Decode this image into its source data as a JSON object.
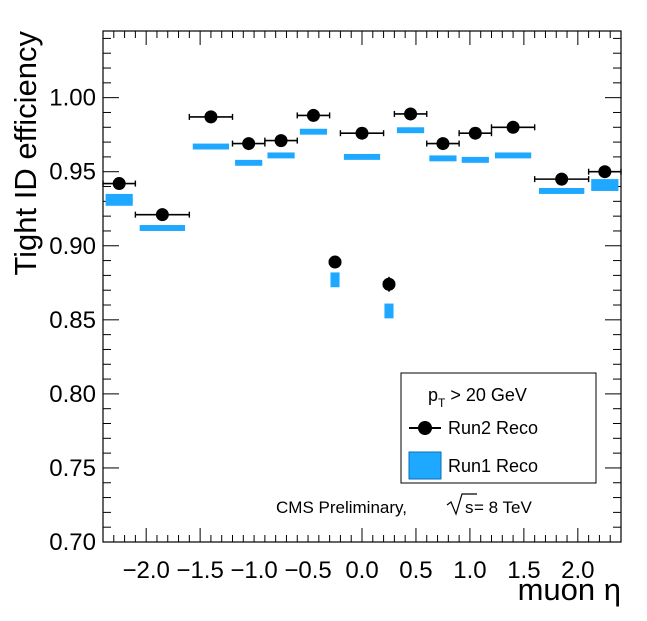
{
  "chart_data": {
    "type": "scatter",
    "title": "",
    "xlabel": "muon η",
    "ylabel": "Tight ID efficiency",
    "xlim": [
      -2.4,
      2.4
    ],
    "ylim": [
      0.7,
      1.045
    ],
    "x_ticks": [
      -2.0,
      -1.5,
      -1.0,
      -0.5,
      0.0,
      0.5,
      1.0,
      1.5,
      2.0
    ],
    "x_tick_labels": [
      "−2.0",
      "−1.5",
      "−1.0",
      "−0.5",
      "0.0",
      "0.5",
      "1.0",
      "1.5",
      "2.0"
    ],
    "y_ticks": [
      0.7,
      0.75,
      0.8,
      0.85,
      0.9,
      0.95,
      1.0
    ],
    "y_tick_labels": [
      "0.70",
      "0.75",
      "0.80",
      "0.85",
      "0.90",
      "0.95",
      "1.00"
    ],
    "bins": [
      -2.4,
      -2.1,
      -1.6,
      -1.2,
      -0.9,
      -0.6,
      -0.3,
      -0.2,
      0.2,
      0.3,
      0.6,
      0.9,
      1.2,
      1.6,
      2.1,
      2.4
    ],
    "series": [
      {
        "name": "Run2 Reco",
        "style": "markers-with-x-error",
        "values": [
          0.942,
          0.921,
          0.987,
          0.969,
          0.971,
          0.988,
          0.889,
          0.976,
          0.874,
          0.989,
          0.969,
          0.976,
          0.98,
          0.945,
          0.95
        ],
        "y_err": [
          0.002,
          0.002,
          0.002,
          0.002,
          0.002,
          0.002,
          0.003,
          0.002,
          0.005,
          0.002,
          0.002,
          0.002,
          0.002,
          0.002,
          0.002
        ]
      },
      {
        "name": "Run1 Reco",
        "style": "band",
        "color": "#1ea8ff",
        "values": [
          0.931,
          0.912,
          0.967,
          0.956,
          0.961,
          0.977,
          0.877,
          0.96,
          0.856,
          0.978,
          0.959,
          0.958,
          0.961,
          0.937,
          0.941
        ],
        "err": [
          0.004,
          0.002,
          0.002,
          0.002,
          0.002,
          0.002,
          0.005,
          0.002,
          0.005,
          0.002,
          0.002,
          0.002,
          0.002,
          0.002,
          0.004
        ]
      }
    ],
    "legend": {
      "placement": "bottom-right",
      "header_main": "p",
      "header_sub": "T",
      "header_rest": " > 20 GeV",
      "entries": [
        "Run2 Reco",
        "Run1 Reco"
      ]
    },
    "annotation": {
      "text_prefix": "CMS Preliminary,",
      "sqrt_s": "s",
      "text_suffix": " = 8 TeV"
    }
  }
}
